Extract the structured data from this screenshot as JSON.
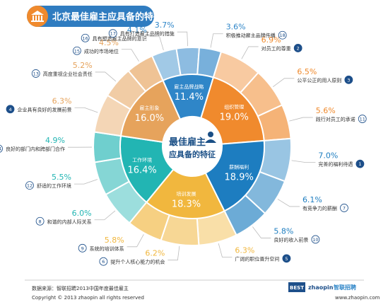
{
  "header": {
    "title": "北京最佳雇主应具备的特征",
    "icon": "bank-building-icon"
  },
  "center": {
    "line1": "最佳雇主",
    "line2": "应具备的特征",
    "icon": "person-icon"
  },
  "footer": {
    "source": "数据来源：智联招聘2013中国年度最佳雇主",
    "copyright": "Copyright © 2013 zhaopin all rights reserved",
    "logo_best": "BEST",
    "logo_brand": "zhaopin",
    "logo_site": "智联招聘",
    "url": "www.zhaopin.com"
  },
  "chart_data": {
    "type": "pie",
    "title": "北京最佳雇主应具备的特征",
    "categories": [
      {
        "name": "雇主品牌战略",
        "value": "11.4%",
        "v": 11.4,
        "color": "#2f86c8"
      },
      {
        "name": "组织管理",
        "value": "19.0%",
        "v": 19.0,
        "color": "#f08a2d"
      },
      {
        "name": "薪酬福利",
        "value": "18.9%",
        "v": 18.9,
        "color": "#1d7dc0"
      },
      {
        "name": "培训发展",
        "value": "18.3%",
        "v": 18.3,
        "color": "#f1b73e"
      },
      {
        "name": "工作环境",
        "value": "16.4%",
        "v": 16.4,
        "color": "#22b5b3"
      },
      {
        "name": "雇主形象",
        "value": "16.0%",
        "v": 16.0,
        "color": "#e6a35c"
      }
    ],
    "items": [
      {
        "rank": "2",
        "label": "对员工的尊重",
        "value": "6.9%",
        "v": 6.9,
        "cat": 1
      },
      {
        "rank": "3",
        "label": "公平公正的用人原则",
        "value": "6.5%",
        "v": 6.5,
        "cat": 1
      },
      {
        "rank": "11",
        "label": "践行对员工的承诺",
        "value": "5.6%",
        "v": 5.6,
        "cat": 1
      },
      {
        "rank": "1",
        "label": "完善的福利待遇",
        "value": "7.0%",
        "v": 7.0,
        "cat": 2
      },
      {
        "rank": "7",
        "label": "有竞争力的薪酬",
        "value": "6.1%",
        "v": 6.1,
        "cat": 2
      },
      {
        "rank": "10",
        "label": "良好的收入前景",
        "value": "5.8%",
        "v": 5.8,
        "cat": 2
      },
      {
        "rank": "5",
        "label": "广阔的职位晋升空间",
        "value": "6.3%",
        "v": 6.3,
        "cat": 3
      },
      {
        "rank": "6",
        "label": "提升个人核心能力的机会",
        "value": "6.2%",
        "v": 6.2,
        "cat": 3
      },
      {
        "rank": "9",
        "label": "系统的培训体系",
        "value": "5.8%",
        "v": 5.8,
        "cat": 3
      },
      {
        "rank": "8",
        "label": "和谐的内部人际关系",
        "value": "6.0%",
        "v": 6.0,
        "cat": 4
      },
      {
        "rank": "12",
        "label": "舒适的工作环境",
        "value": "5.5%",
        "v": 5.5,
        "cat": 4
      },
      {
        "rank": "14",
        "label": "良好的部门内和跨部门合作",
        "value": "4.9%",
        "v": 4.9,
        "cat": 4
      },
      {
        "rank": "4",
        "label": "企业具有良好的发展前景",
        "value": "6.3%",
        "v": 6.3,
        "cat": 5
      },
      {
        "rank": "13",
        "label": "高度重视企业社会责任",
        "value": "5.2%",
        "v": 5.2,
        "cat": 5
      },
      {
        "rank": "15",
        "label": "成功的市场地位",
        "value": "4.5%",
        "v": 4.5,
        "cat": 5
      },
      {
        "rank": "16",
        "label": "具有塑造雇主品牌的意识",
        "value": "4.1%",
        "v": 4.1,
        "cat": 0
      },
      {
        "rank": "17",
        "label": "具有打造雇主品牌的措施",
        "value": "3.7%",
        "v": 3.7,
        "cat": 0
      },
      {
        "rank": "18",
        "label": "积极推动雇主品牌传播",
        "value": "3.6%",
        "v": 3.6,
        "cat": 0
      }
    ],
    "center_label": "最佳雇主应具备的特征"
  }
}
